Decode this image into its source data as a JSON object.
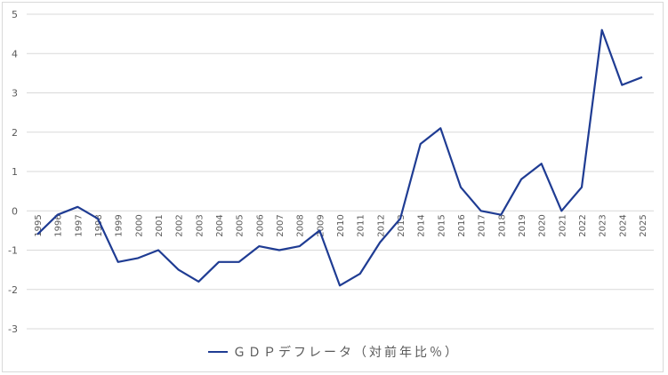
{
  "chart_data": {
    "type": "line",
    "title": "",
    "xlabel": "",
    "ylabel": "",
    "ylim": [
      -3,
      5
    ],
    "yticks": [
      5,
      4,
      3,
      2,
      1,
      0,
      -1,
      -2,
      -3
    ],
    "grid": true,
    "legend_position": "bottom",
    "categories": [
      "1995",
      "1996",
      "1997",
      "1998",
      "1999",
      "2000",
      "2001",
      "2002",
      "2003",
      "2004",
      "2005",
      "2006",
      "2007",
      "2008",
      "2009",
      "2010",
      "2011",
      "2012",
      "2013",
      "2014",
      "2015",
      "2016",
      "2017",
      "2018",
      "2019",
      "2020",
      "2021",
      "2022",
      "2023",
      "2024",
      "2025"
    ],
    "series": [
      {
        "name": "ＧＤＰデフレータ（対前年比％）",
        "color": "#1f3c93",
        "values": [
          -0.6,
          -0.1,
          0.1,
          -0.2,
          -1.3,
          -1.2,
          -1.0,
          -1.5,
          -1.8,
          -1.3,
          -1.3,
          -0.9,
          -1.0,
          -0.9,
          -0.5,
          -1.9,
          -1.6,
          -0.8,
          -0.2,
          1.7,
          2.1,
          0.6,
          0.0,
          -0.1,
          0.8,
          1.2,
          0.0,
          0.6,
          4.6,
          3.2,
          3.4
        ]
      }
    ]
  },
  "legend": {
    "label": "ＧＤＰデフレータ（対前年比％）",
    "color": "#1f3c93"
  }
}
